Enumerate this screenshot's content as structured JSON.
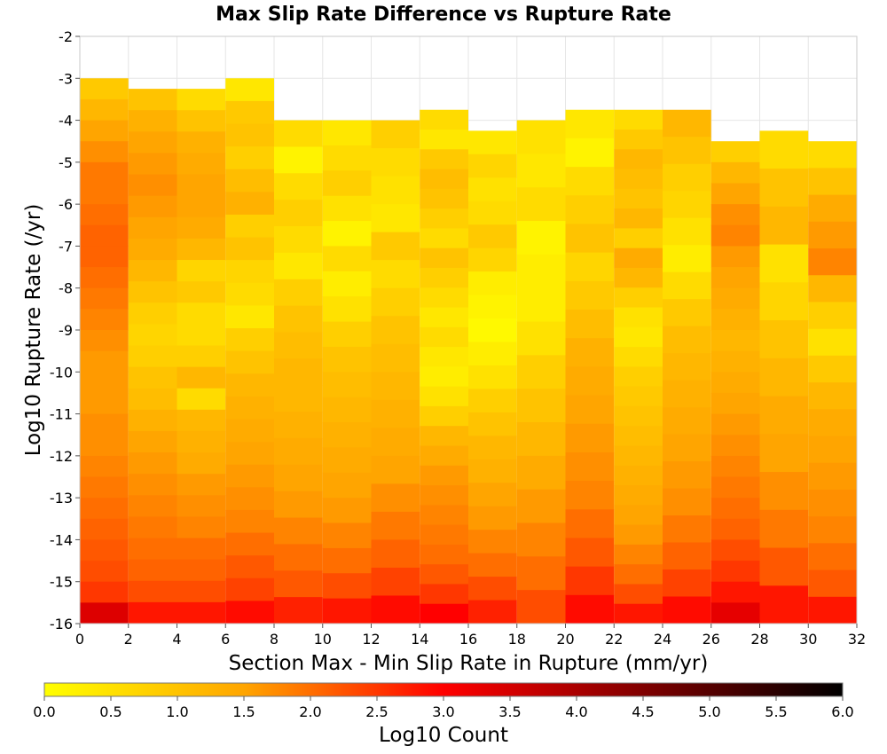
{
  "chart_data": {
    "type": "heatmap",
    "title": "Max Slip Rate Difference vs Rupture Rate",
    "xlabel": "Section Max - Min Slip Rate in Rupture (mm/yr)",
    "ylabel": "Log10 Rupture Rate (/yr)",
    "xlim": [
      0,
      32
    ],
    "ylim": [
      -16,
      -2
    ],
    "x_ticks": [
      "0",
      "2",
      "4",
      "6",
      "8",
      "10",
      "12",
      "14",
      "16",
      "18",
      "20",
      "22",
      "24",
      "26",
      "28",
      "30",
      "32"
    ],
    "y_ticks": [
      "-2",
      "-3",
      "-4",
      "-5",
      "-6",
      "-7",
      "-8",
      "-9",
      "-10",
      "-11",
      "-12",
      "-13",
      "-14",
      "-15",
      "-16"
    ],
    "bin_width_x": 2,
    "bin_height_y": 0.25,
    "colorbar": {
      "label": "Log10 Count",
      "range": [
        0,
        6
      ],
      "ticks": [
        "0.0",
        "0.5",
        "1.0",
        "1.5",
        "2.0",
        "2.5",
        "3.0",
        "3.5",
        "4.0",
        "4.5",
        "5.0",
        "5.5",
        "6.0"
      ],
      "colors": [
        "#ffff00",
        "#ffa500",
        "#ff0000",
        "#800000",
        "#000000"
      ]
    },
    "grid": true,
    "legend": "bottom",
    "columns": [
      {
        "x": 1,
        "y_top": -3.0,
        "y_bottom": -16.0,
        "cells": [
          0.9,
          1.2,
          1.5,
          1.7,
          1.9,
          1.9,
          2.0,
          2.1,
          2.1,
          2.0,
          1.9,
          1.8,
          1.7,
          1.6,
          1.6,
          1.6,
          1.7,
          1.7,
          1.8,
          1.9,
          2.0,
          2.1,
          2.2,
          2.3,
          2.5,
          3.4
        ]
      },
      {
        "x": 3,
        "y_top": -3.25,
        "y_bottom": -16.0,
        "cells": [
          1.0,
          1.3,
          1.5,
          1.6,
          1.7,
          1.6,
          1.5,
          1.4,
          1.2,
          1.0,
          0.8,
          0.7,
          0.8,
          1.0,
          1.1,
          1.3,
          1.5,
          1.6,
          1.7,
          1.8,
          1.9,
          2.0,
          2.1,
          2.3,
          2.8
        ]
      },
      {
        "x": 5,
        "y_top": -3.25,
        "y_bottom": -16.0,
        "cells": [
          0.6,
          1.0,
          1.3,
          1.4,
          1.5,
          1.5,
          1.4,
          1.2,
          0.7,
          0.9,
          0.6,
          0.6,
          0.8,
          1.2,
          0.6,
          1.2,
          1.3,
          1.4,
          1.6,
          1.7,
          1.8,
          2.0,
          2.1,
          2.3,
          2.8
        ]
      },
      {
        "x": 7,
        "y_top": -3.0,
        "y_bottom": -16.0,
        "cells": [
          0.4,
          0.9,
          1.0,
          0.8,
          1.1,
          1.3,
          0.8,
          1.0,
          0.7,
          0.6,
          0.4,
          0.8,
          1.0,
          1.2,
          1.3,
          1.4,
          1.5,
          1.6,
          1.7,
          1.8,
          2.0,
          2.2,
          2.4,
          2.9
        ]
      },
      {
        "x": 9,
        "y_top": -4.0,
        "y_bottom": -16.0,
        "cells": [
          0.6,
          0.2,
          0.6,
          0.8,
          0.6,
          0.4,
          0.8,
          1.0,
          1.1,
          1.2,
          1.2,
          1.3,
          1.4,
          1.5,
          1.6,
          1.8,
          2.0,
          2.2,
          2.7
        ]
      },
      {
        "x": 11,
        "y_top": -4.0,
        "y_bottom": -16.0,
        "cells": [
          0.4,
          0.6,
          0.8,
          0.5,
          0.2,
          0.6,
          0.3,
          0.5,
          0.8,
          1.0,
          1.1,
          1.2,
          1.3,
          1.4,
          1.5,
          1.6,
          1.8,
          2.0,
          2.3,
          2.8
        ]
      },
      {
        "x": 13,
        "y_top": -4.0,
        "y_bottom": -16.0,
        "cells": [
          0.8,
          0.6,
          0.5,
          0.4,
          0.9,
          0.6,
          0.8,
          1.0,
          1.1,
          1.2,
          1.3,
          1.4,
          1.5,
          1.7,
          1.9,
          2.1,
          2.4,
          2.9
        ]
      },
      {
        "x": 15,
        "y_top": -3.75,
        "y_bottom": -16.0,
        "cells": [
          0.6,
          0.4,
          0.9,
          1.1,
          1.0,
          0.8,
          0.6,
          1.0,
          0.8,
          0.6,
          0.4,
          0.6,
          0.4,
          0.3,
          0.5,
          0.8,
          1.2,
          1.4,
          1.6,
          1.7,
          1.8,
          1.9,
          2.0,
          2.2,
          2.5,
          3.0
        ]
      },
      {
        "x": 17,
        "y_top": -4.25,
        "y_bottom": -16.0,
        "cells": [
          0.4,
          0.7,
          0.5,
          0.6,
          0.9,
          0.7,
          0.3,
          0.2,
          0.1,
          0.3,
          0.5,
          0.8,
          1.0,
          1.2,
          1.3,
          1.5,
          1.6,
          1.8,
          2.0,
          2.3,
          2.7
        ]
      },
      {
        "x": 19,
        "y_top": -4.0,
        "y_bottom": -16.0,
        "cells": [
          0.5,
          0.4,
          0.6,
          0.2,
          0.3,
          0.3,
          0.5,
          0.8,
          1.0,
          1.2,
          1.4,
          1.6,
          1.8,
          2.0,
          2.3
        ]
      },
      {
        "x": 21,
        "y_top": -3.75,
        "y_bottom": -16.0,
        "cells": [
          0.4,
          0.2,
          0.6,
          0.8,
          1.0,
          0.7,
          0.9,
          1.1,
          1.3,
          1.4,
          1.5,
          1.6,
          1.7,
          1.8,
          2.0,
          2.2,
          2.5,
          2.9
        ]
      },
      {
        "x": 23,
        "y_top": -3.75,
        "y_bottom": -16.0,
        "cells": [
          0.6,
          0.9,
          1.2,
          1.1,
          1.0,
          1.2,
          0.8,
          1.4,
          1.2,
          0.8,
          0.5,
          0.4,
          0.6,
          0.8,
          0.9,
          1.0,
          1.1,
          1.2,
          1.3,
          1.4,
          1.5,
          1.6,
          1.8,
          2.0,
          2.3,
          2.8
        ]
      },
      {
        "x": 25,
        "y_top": -3.75,
        "y_bottom": -16.0,
        "cells": [
          1.2,
          1.0,
          0.8,
          0.7,
          0.5,
          0.3,
          0.6,
          0.9,
          1.1,
          1.2,
          1.3,
          1.4,
          1.5,
          1.6,
          1.7,
          1.9,
          2.1,
          2.4,
          2.9
        ]
      },
      {
        "x": 27,
        "y_top": -4.5,
        "y_bottom": -16.0,
        "cells": [
          0.8,
          1.2,
          1.5,
          1.7,
          1.8,
          1.6,
          1.5,
          1.4,
          1.3,
          1.2,
          1.3,
          1.4,
          1.5,
          1.6,
          1.7,
          1.8,
          1.9,
          2.0,
          2.1,
          2.3,
          2.5,
          2.8,
          3.3
        ]
      },
      {
        "x": 29,
        "y_top": -4.25,
        "y_bottom": -16.0,
        "cells": [
          0.6,
          1.0,
          1.2,
          0.5,
          0.7,
          1.0,
          1.2,
          1.4,
          1.5,
          1.7,
          1.9,
          2.2,
          2.8
        ]
      },
      {
        "x": 31,
        "y_top": -4.5,
        "y_bottom": -16.0,
        "cells": [
          0.6,
          1.0,
          1.4,
          1.6,
          1.8,
          1.2,
          0.8,
          0.5,
          0.9,
          1.2,
          1.4,
          1.5,
          1.6,
          1.7,
          1.8,
          2.0,
          2.2,
          2.8
        ]
      }
    ]
  }
}
